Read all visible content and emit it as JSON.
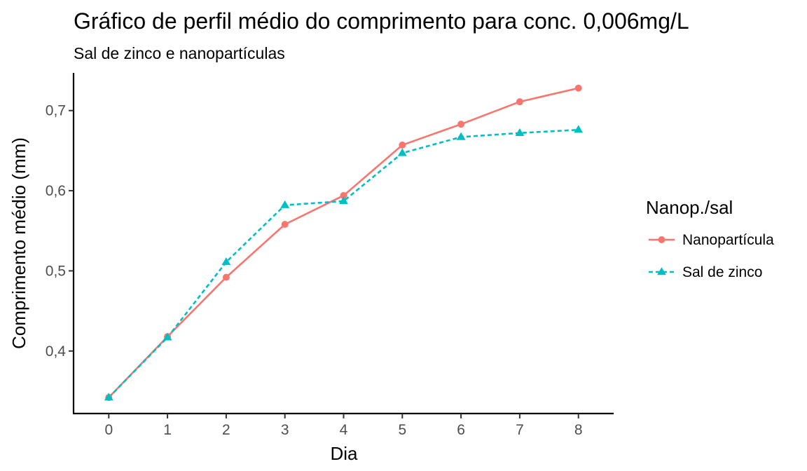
{
  "chart_data": {
    "type": "line",
    "title": "Gráfico de perfil médio do comprimento para conc. 0,006mg/L",
    "subtitle": "Sal de zinco e nanopartículas",
    "xlabel": "Dia",
    "ylabel": "Comprimento médio (mm)",
    "x": [
      0,
      1,
      2,
      3,
      4,
      5,
      6,
      7,
      8
    ],
    "x_tick_labels": [
      "0",
      "1",
      "2",
      "3",
      "4",
      "5",
      "6",
      "7",
      "8"
    ],
    "xlim": [
      -0.6,
      8.6
    ],
    "y_ticks": [
      0.4,
      0.5,
      0.6,
      0.7
    ],
    "y_tick_labels": [
      "0,4",
      "0,5",
      "0,6",
      "0,7"
    ],
    "ylim": [
      0.322,
      0.747
    ],
    "grid": false,
    "legend": {
      "title": "Nanop./sal",
      "placement": "right"
    },
    "series": [
      {
        "name": "Nanopartícula",
        "color": "#F8766D",
        "line_style": "solid",
        "marker": "circle",
        "values": [
          0.342,
          0.418,
          0.492,
          0.558,
          0.594,
          0.657,
          0.683,
          0.711,
          0.728
        ]
      },
      {
        "name": "Sal de zinco",
        "color": "#00BFC4",
        "line_style": "dashed",
        "marker": "triangle",
        "values": [
          0.342,
          0.417,
          0.511,
          0.582,
          0.587,
          0.647,
          0.667,
          0.672,
          0.676
        ]
      }
    ]
  }
}
